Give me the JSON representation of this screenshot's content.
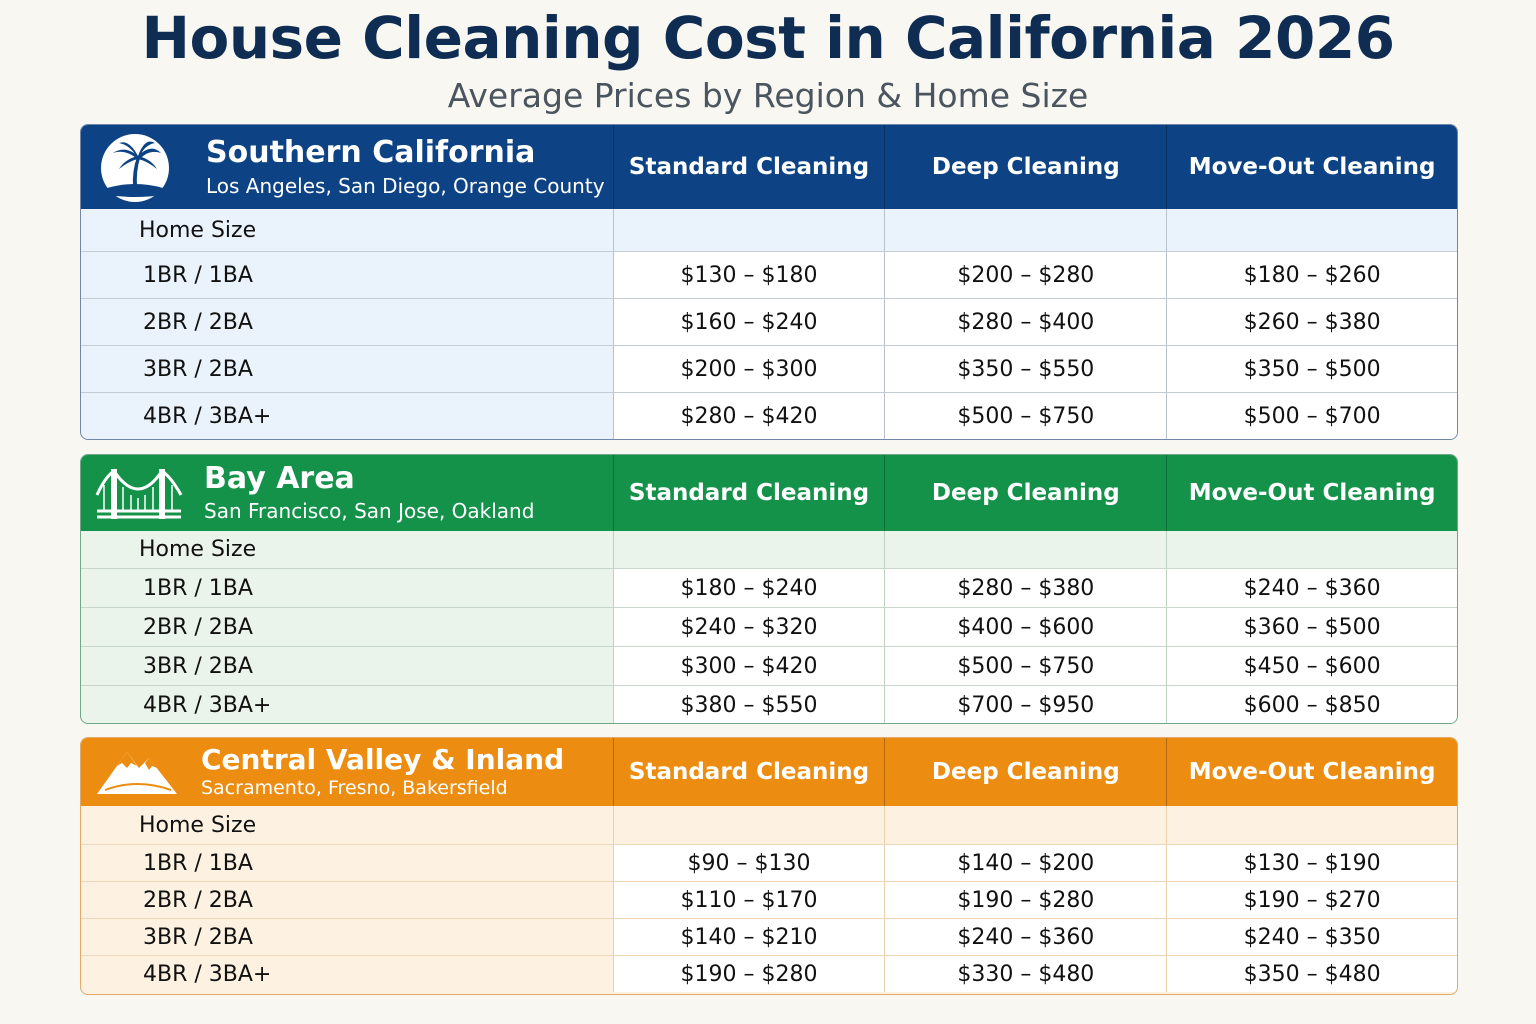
{
  "title": "House Cleaning Cost in California 2026",
  "subtitle": "Average Prices by Region & Home Size",
  "columns": [
    "Standard Cleaning",
    "Deep Cleaning",
    "Move-Out Cleaning"
  ],
  "size_label": "Home Size",
  "colors": {
    "title": "#0f2d52",
    "south": "#0d4384",
    "bay": "#15924a",
    "central": "#ec8d12"
  },
  "regions": [
    {
      "name": "Southern California",
      "cities": "Los Angeles, San Diego, Orange County",
      "icon": "palm-tree-icon",
      "rows": [
        {
          "size": "1BR / 1BA",
          "standard": "$130 – $180",
          "deep": "$200 – $280",
          "moveout": "$180 – $260"
        },
        {
          "size": "2BR / 2BA",
          "standard": "$160 – $240",
          "deep": "$280 – $400",
          "moveout": "$260 – $380"
        },
        {
          "size": "3BR / 2BA",
          "standard": "$200 – $300",
          "deep": "$350 – $550",
          "moveout": "$350 – $500"
        },
        {
          "size": "4BR / 3BA+",
          "standard": "$280 – $420",
          "deep": "$500 – $750",
          "moveout": "$500 – $700"
        }
      ]
    },
    {
      "name": "Bay Area",
      "cities": "San Francisco, San Jose, Oakland",
      "icon": "golden-gate-bridge-icon",
      "rows": [
        {
          "size": "1BR / 1BA",
          "standard": "$180 – $240",
          "deep": "$280 – $380",
          "moveout": "$240 – $360"
        },
        {
          "size": "2BR / 2BA",
          "standard": "$240 – $320",
          "deep": "$400 – $600",
          "moveout": "$360 – $500"
        },
        {
          "size": "3BR / 2BA",
          "standard": "$300 – $420",
          "deep": "$500 – $750",
          "moveout": "$450 – $600"
        },
        {
          "size": "4BR / 3BA+",
          "standard": "$380 – $550",
          "deep": "$700 – $950",
          "moveout": "$600 – $850"
        }
      ]
    },
    {
      "name": "Central Valley & Inland",
      "cities": "Sacramento, Fresno, Bakersfield",
      "icon": "mountain-icon",
      "rows": [
        {
          "size": "1BR / 1BA",
          "standard": "$90 – $130",
          "deep": "$140 – $200",
          "moveout": "$130 – $190"
        },
        {
          "size": "2BR / 2BA",
          "standard": "$110 – $170",
          "deep": "$190 – $280",
          "moveout": "$190 – $270"
        },
        {
          "size": "3BR / 2BA",
          "standard": "$140 – $210",
          "deep": "$240 – $360",
          "moveout": "$240 – $350"
        },
        {
          "size": "4BR / 3BA+",
          "standard": "$190 – $280",
          "deep": "$330 – $480",
          "moveout": "$350 – $480"
        }
      ]
    }
  ]
}
